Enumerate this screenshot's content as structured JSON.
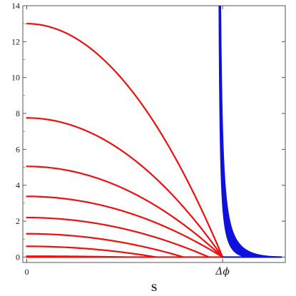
{
  "chart_data": {
    "type": "line",
    "title": "",
    "xlabel": "S",
    "ylabel": "",
    "xlim": [
      -0.02,
      1.32
    ],
    "ylim": [
      -0.3,
      14
    ],
    "grid": false,
    "legend": "none",
    "x_ticks": [
      {
        "value": 0,
        "label": "0"
      },
      {
        "value": 1,
        "label": "Δϕ"
      }
    ],
    "y_ticks": [
      {
        "value": 0,
        "label": "0"
      },
      {
        "value": 2,
        "label": "2"
      },
      {
        "value": 4,
        "label": "4"
      },
      {
        "value": 6,
        "label": "6"
      },
      {
        "value": 8,
        "label": "8"
      },
      {
        "value": 10,
        "label": "10"
      },
      {
        "value": 12,
        "label": "12"
      },
      {
        "value": 14,
        "label": "14"
      }
    ],
    "colors": {
      "red_family": "#ee0f0f",
      "blue_family": "#1111dd"
    },
    "series": [
      {
        "family": "red",
        "kind": "cap",
        "peak": 13.0,
        "end": 1.0
      },
      {
        "family": "red",
        "kind": "cap",
        "peak": 7.75,
        "end": 1.0
      },
      {
        "family": "red",
        "kind": "cap",
        "peak": 5.05,
        "end": 1.0
      },
      {
        "family": "red",
        "kind": "cap",
        "peak": 3.38,
        "end": 1.0
      },
      {
        "family": "red",
        "kind": "cap",
        "peak": 2.2,
        "end": 0.93
      },
      {
        "family": "red",
        "kind": "cap",
        "peak": 1.3,
        "end": 0.8
      },
      {
        "family": "red",
        "kind": "cap",
        "peak": 0.6,
        "end": 0.66
      },
      {
        "family": "red",
        "kind": "cap",
        "peak": 0.05,
        "end": 0.5
      },
      {
        "family": "red",
        "kind": "flat",
        "y": 0.0,
        "from": 0.0,
        "to": 1.0
      },
      {
        "family": "blue",
        "kind": "decay",
        "start": 0.977,
        "end": 1.15
      },
      {
        "family": "blue",
        "kind": "decay",
        "start": 0.977,
        "end": 1.17
      },
      {
        "family": "blue",
        "kind": "decay",
        "start": 0.977,
        "end": 1.19
      },
      {
        "family": "blue",
        "kind": "decay",
        "start": 0.977,
        "end": 1.21
      },
      {
        "family": "blue",
        "kind": "decay",
        "start": 0.977,
        "end": 1.23
      },
      {
        "family": "blue",
        "kind": "decay",
        "start": 0.977,
        "end": 1.25
      },
      {
        "family": "blue",
        "kind": "decay",
        "start": 0.977,
        "end": 1.27
      },
      {
        "family": "blue",
        "kind": "decay",
        "start": 0.977,
        "end": 1.29
      },
      {
        "family": "blue",
        "kind": "flat",
        "y": 0.0,
        "from": 1.0,
        "to": 1.3
      }
    ]
  }
}
